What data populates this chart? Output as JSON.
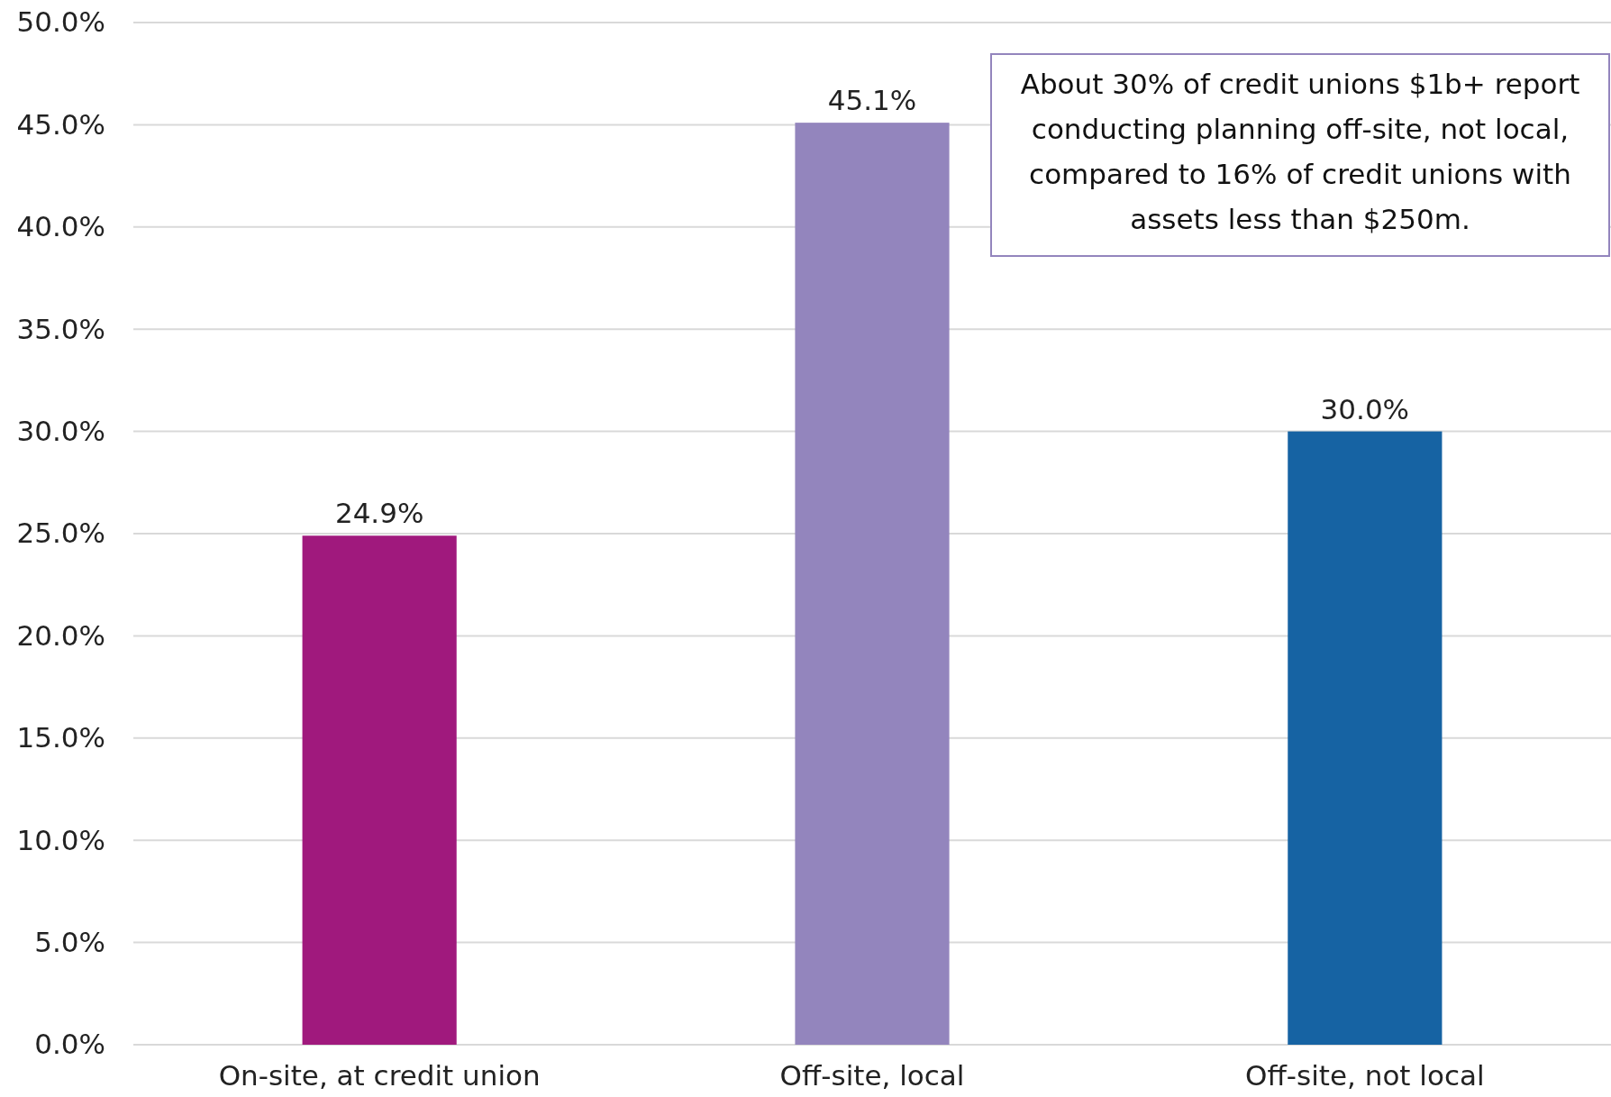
{
  "chart_data": {
    "type": "bar",
    "categories": [
      "On-site, at credit union",
      "Off-site, local",
      "Off-site, not local"
    ],
    "values": [
      24.9,
      45.1,
      30.0
    ],
    "colors": [
      "#a0197d",
      "#9385bd",
      "#1663a3"
    ],
    "value_labels": [
      "24.9%",
      "45.1%",
      "30.0%"
    ],
    "ylim": [
      0,
      50
    ],
    "yticks": [
      {
        "value": 0,
        "label": "0.0%"
      },
      {
        "value": 5,
        "label": "5.0%"
      },
      {
        "value": 10,
        "label": "10.0%"
      },
      {
        "value": 15,
        "label": "15.0%"
      },
      {
        "value": 20,
        "label": "20.0%"
      },
      {
        "value": 25,
        "label": "25.0%"
      },
      {
        "value": 30,
        "label": "30.0%"
      },
      {
        "value": 35,
        "label": "35.0%"
      },
      {
        "value": 40,
        "label": "40.0%"
      },
      {
        "value": 45,
        "label": "45.0%"
      },
      {
        "value": 50,
        "label": "50.0%"
      }
    ],
    "grid": "y",
    "annotations": [
      "About 30% of credit unions $1b+ report conducting planning off-site, not local, compared to 16% of credit unions with assets less than $250m."
    ]
  }
}
